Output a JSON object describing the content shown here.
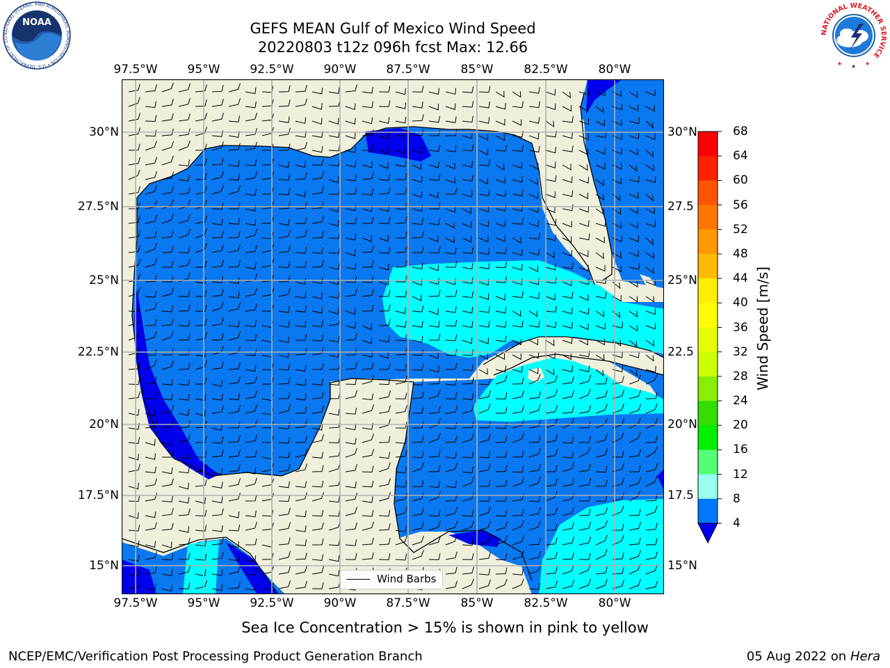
{
  "title_line1": "GEFS MEAN Gulf of Mexico Wind Speed",
  "title_line2": "20220803 t12z 096h fcst   Max: 12.66",
  "lon_ticks": [
    "97.5°W",
    "95°W",
    "92.5°W",
    "90°W",
    "87.5°W",
    "85°W",
    "82.5°W",
    "80°W"
  ],
  "lat_ticks_left": [
    "30°N",
    "27.5°N",
    "25°N",
    "22.5°N",
    "20°N",
    "17.5°N",
    "15°N"
  ],
  "lat_ticks_right": [
    "30°N",
    "27.5",
    "25°N",
    "22.5",
    "20°N",
    "17.5",
    "15°N"
  ],
  "legend_label": "Wind Barbs",
  "colorbar": {
    "label": "Wind Speed [m/s]",
    "ticks": [
      "68",
      "64",
      "60",
      "56",
      "52",
      "48",
      "44",
      "40",
      "36",
      "32",
      "28",
      "24",
      "20",
      "16",
      "12",
      "8",
      "4"
    ],
    "colors": [
      "#ff0000",
      "#ff2200",
      "#ff5500",
      "#ff7700",
      "#ff9900",
      "#ffbb00",
      "#ffee00",
      "#ffff00",
      "#e5ff00",
      "#ccff00",
      "#88ee00",
      "#33dd00",
      "#00ee00",
      "#55ff77",
      "#99ffee",
      "#55ffff",
      "#00ffff",
      "#0077ff"
    ],
    "extend_color": "#0000ee"
  },
  "colors": {
    "land": "#efefdc",
    "ocean_light_blue": "#0a78f0",
    "ocean_dark_blue": "#0000ee",
    "ocean_cyan": "#00ffff",
    "grid": "#b0b0b0"
  },
  "note": "Sea Ice Concentration > 15% is shown in pink to yellow",
  "footer_left": "NCEP/EMC/Verification Post Processing Product Generation Branch",
  "footer_right_date": "05 Aug 2022 on",
  "footer_right_host": "Hera",
  "logos": {
    "noaa": "NOAA",
    "noaa_ring": "NATIONAL OCEANIC AND ATMOSPHERIC ADMINISTRATION • U.S. DEPARTMENT OF COMMERCE",
    "nws_ring": "NATIONAL WEATHER SERVICE"
  }
}
